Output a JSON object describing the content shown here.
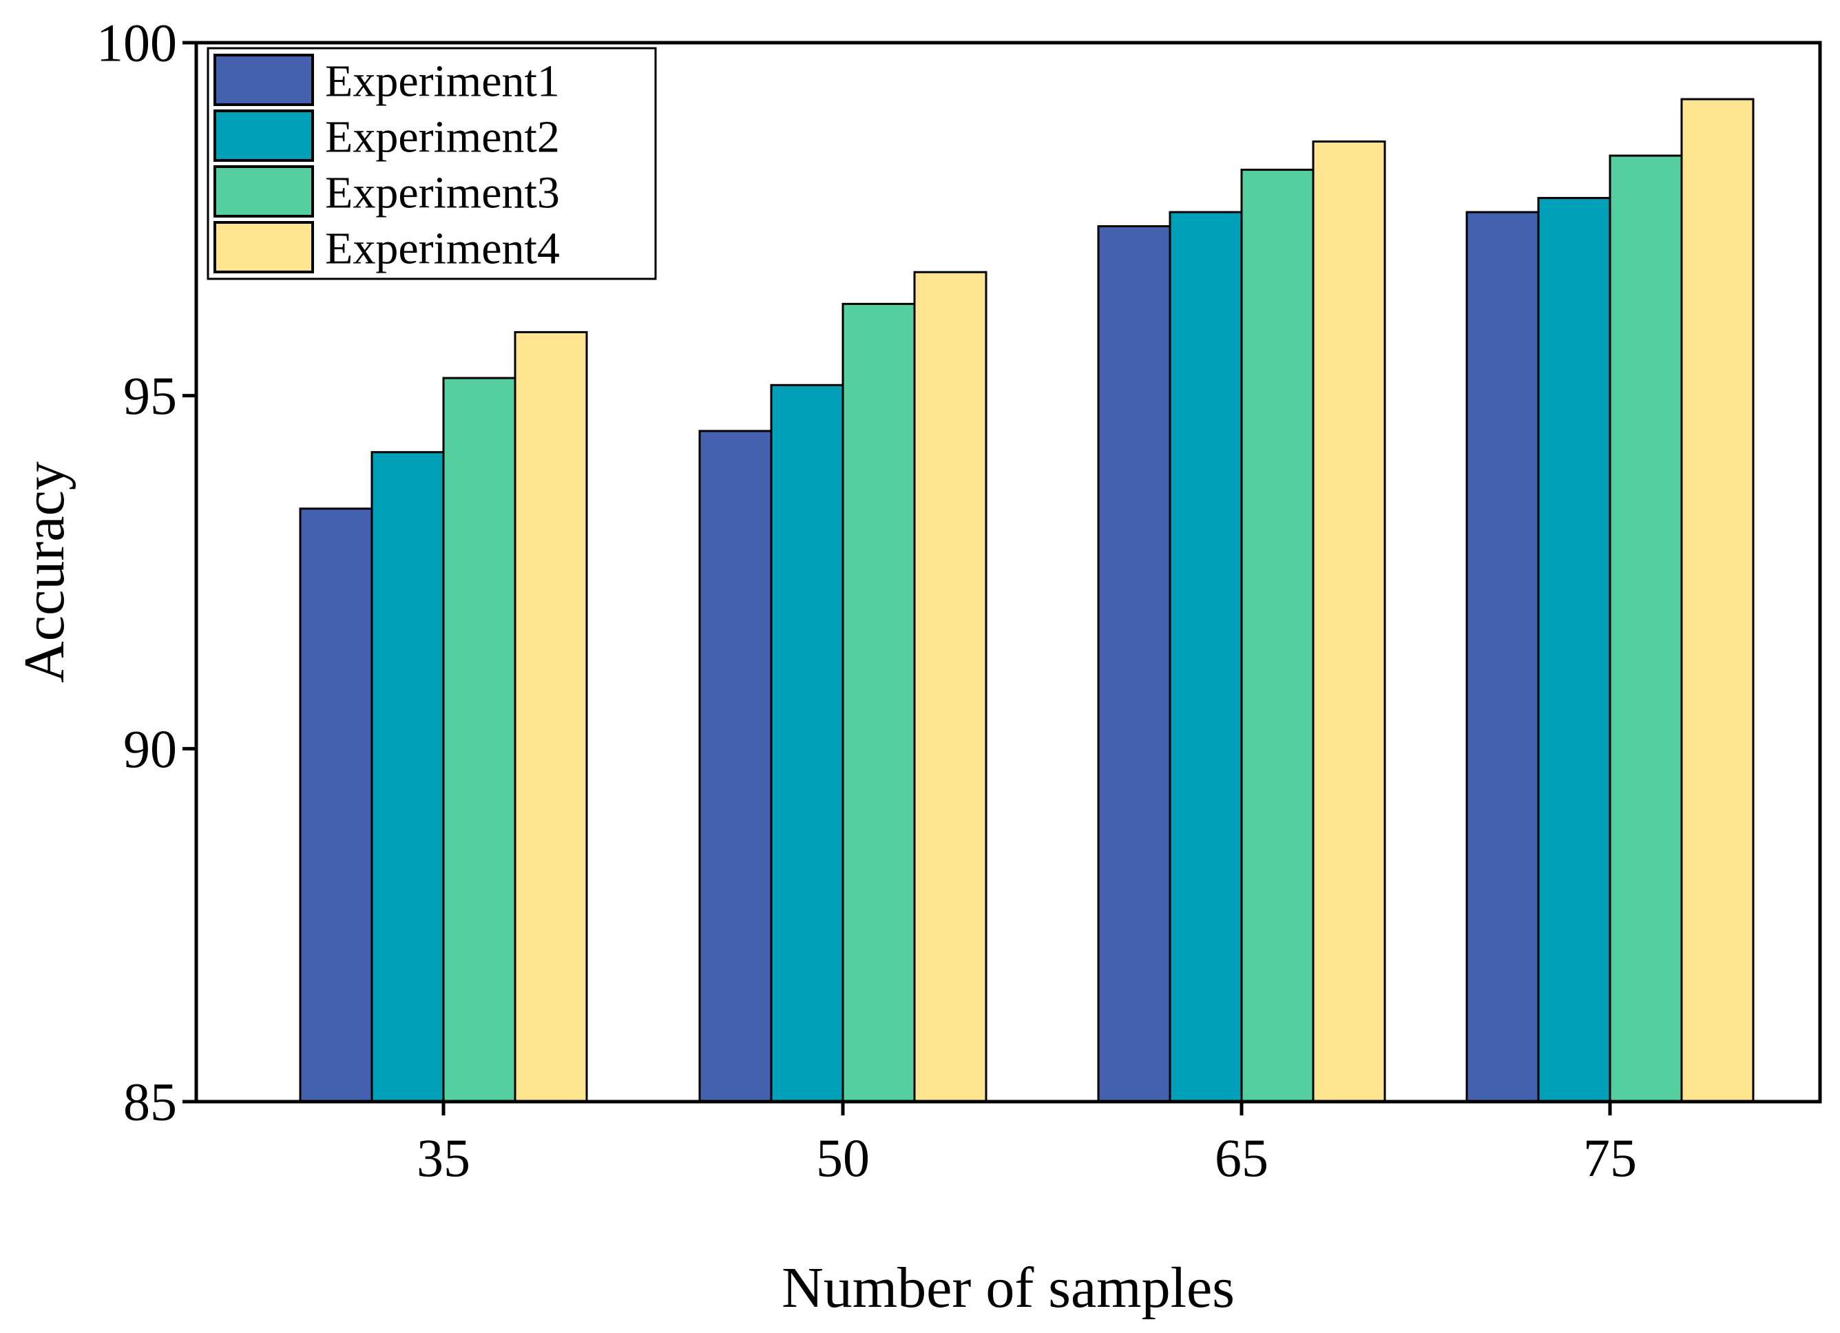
{
  "chart_data": {
    "type": "bar",
    "title": "",
    "xlabel": "Number of samples",
    "ylabel": "Accuracy",
    "ylim": [
      85,
      100
    ],
    "yticks": [
      "85",
      "90",
      "95",
      "100"
    ],
    "categories": [
      "35",
      "50",
      "65",
      "75"
    ],
    "legend_position": "top-left",
    "series": [
      {
        "name": "Experiment1",
        "color": "#4361AE",
        "values": [
          93.4,
          94.5,
          97.4,
          97.6
        ]
      },
      {
        "name": "Experiment2",
        "color": "#00A0B8",
        "values": [
          94.2,
          95.15,
          97.6,
          97.8
        ]
      },
      {
        "name": "Experiment3",
        "color": "#55CFA0",
        "values": [
          95.25,
          96.3,
          98.2,
          98.4
        ]
      },
      {
        "name": "Experiment4",
        "color": "#FFE58F",
        "values": [
          95.9,
          96.75,
          98.6,
          99.2
        ]
      }
    ]
  }
}
